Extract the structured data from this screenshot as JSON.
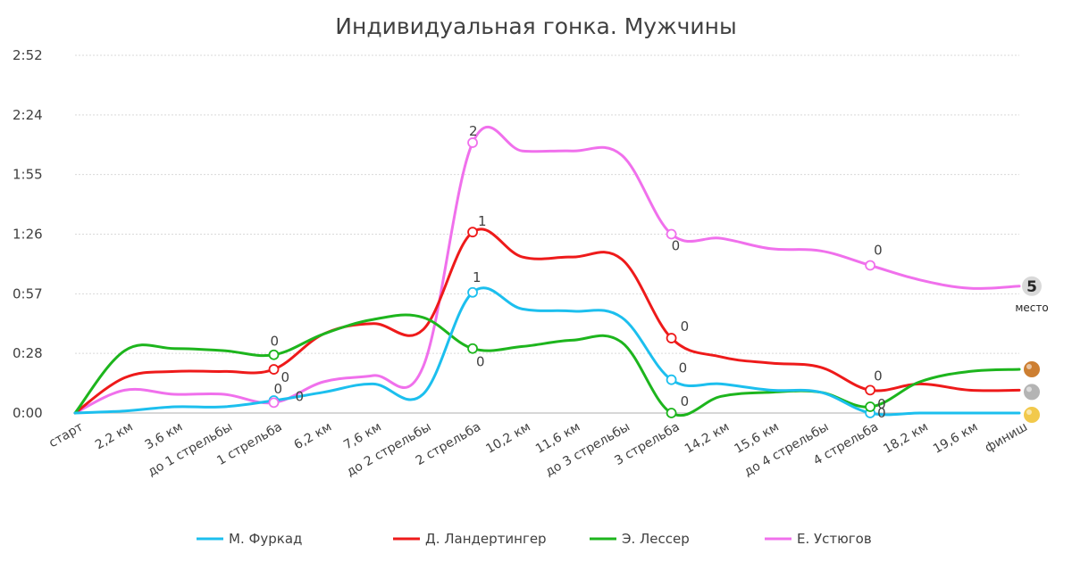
{
  "chart_data": {
    "type": "line",
    "title": "Индивидуальная гонка. Мужчины",
    "y_tick_labels": [
      "0:00",
      "0:28",
      "0:57",
      "1:26",
      "1:55",
      "2:24",
      "2:52"
    ],
    "y_range_seconds": [
      0,
      172
    ],
    "categories": [
      "старт",
      "2,2 км",
      "3,6 км",
      "до 1 стрельбы",
      "1 стрельба",
      "6,2 км",
      "7,6 км",
      "до 2 стрельбы",
      "2 стрельба",
      "10,2 км",
      "11,6 км",
      "до 3 стрельбы",
      "3 стрельба",
      "14,2 км",
      "15,6 км",
      "до 4 стрельбы",
      "4 стрельба",
      "18,2 км",
      "19,6 км",
      "финиш"
    ],
    "grid": true,
    "legend_position": "bottom",
    "series": [
      {
        "name": "М. Фуркад",
        "color": "#1cbfee",
        "values": [
          0,
          1,
          3,
          3,
          6,
          10,
          14,
          9,
          58,
          50,
          49,
          46,
          16,
          14,
          11,
          10,
          0,
          0,
          0,
          0
        ],
        "shooting": [
          {
            "category": "1 стрельба",
            "misses": "0"
          },
          {
            "category": "2 стрельба",
            "misses": "1"
          },
          {
            "category": "3 стрельба",
            "misses": "0"
          },
          {
            "category": "4 стрельба",
            "misses": "0"
          }
        ]
      },
      {
        "name": "Д. Ландертингер",
        "color": "#ee1a1a",
        "values": [
          0,
          17,
          20,
          20,
          21,
          38,
          43,
          40,
          87,
          75,
          75,
          74,
          36,
          27,
          24,
          22,
          11,
          14,
          11,
          11
        ],
        "shooting": [
          {
            "category": "1 стрельба",
            "misses": "0"
          },
          {
            "category": "2 стрельба",
            "misses": "1"
          },
          {
            "category": "3 стрельба",
            "misses": "0"
          },
          {
            "category": "4 стрельба",
            "misses": "0"
          }
        ]
      },
      {
        "name": "Э. Лессер",
        "color": "#1db51d",
        "values": [
          0,
          30,
          31,
          30,
          28,
          38,
          45,
          46,
          31,
          32,
          35,
          34,
          0,
          8,
          10,
          10,
          3,
          15,
          20,
          21
        ],
        "shooting": [
          {
            "category": "1 стрельба",
            "misses": "0"
          },
          {
            "category": "2 стрельба",
            "misses": "0"
          },
          {
            "category": "3 стрельба",
            "misses": "0"
          },
          {
            "category": "4 стрельба",
            "misses": "0"
          }
        ]
      },
      {
        "name": "Е. Устюгов",
        "color": "#f070ec",
        "values": [
          0,
          11,
          9,
          9,
          5,
          15,
          18,
          22,
          130,
          126,
          126,
          124,
          86,
          84,
          79,
          78,
          71,
          64,
          60,
          61
        ],
        "shooting": [
          {
            "category": "1 стрельба",
            "misses": "0"
          },
          {
            "category": "2 стрельба",
            "misses": "2"
          },
          {
            "category": "3 стрельба",
            "misses": "0"
          },
          {
            "category": "4 стрельба",
            "misses": "0"
          }
        ]
      }
    ],
    "finish_places": [
      {
        "medal": "bronze",
        "color": "#cd7f32"
      },
      {
        "medal": "silver",
        "color": "#b4b4b4"
      },
      {
        "medal": "gold",
        "color": "#f2c94c"
      },
      {
        "place": "5",
        "caption": "место"
      }
    ]
  }
}
